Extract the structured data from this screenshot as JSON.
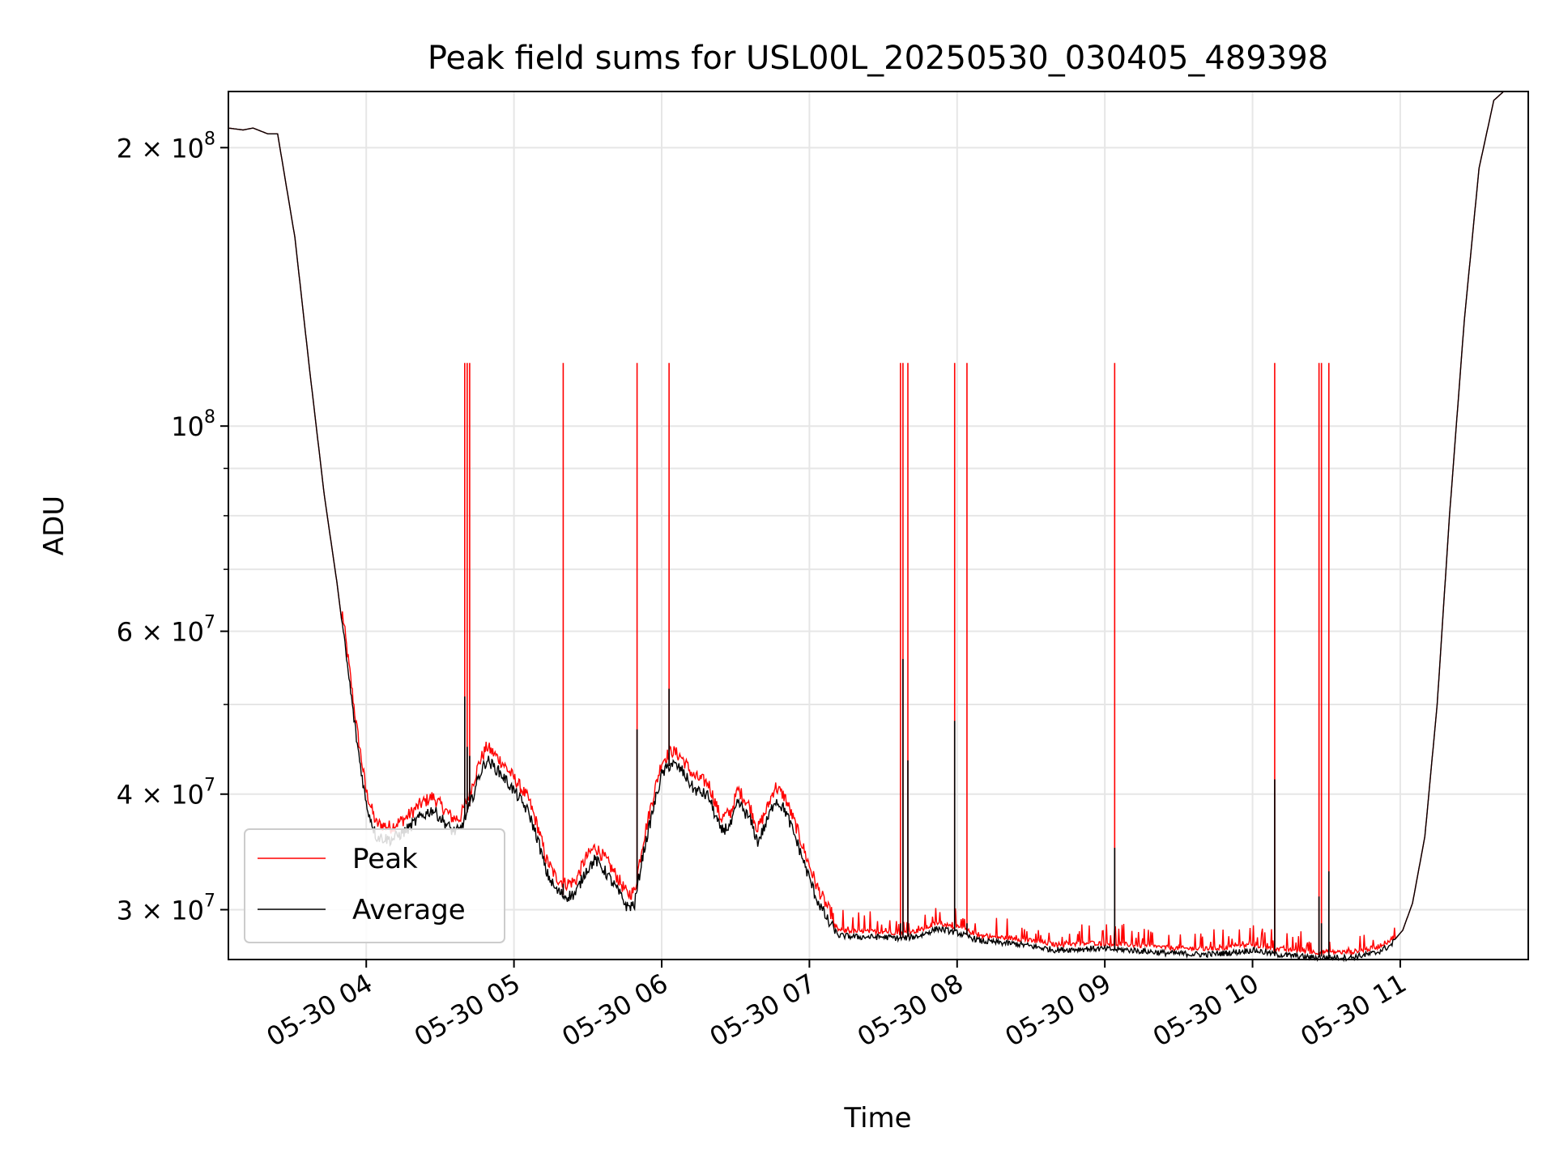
{
  "chart_data": {
    "type": "line",
    "title": "Peak field sums for USL00L_20250530_030405_489398",
    "xlabel": "Time",
    "ylabel": "ADU",
    "yscale": "log",
    "grid": true,
    "legend_position": "lower-left",
    "xlim": [
      "2025-05-30 03:04",
      "2025-05-30 11:52"
    ],
    "ylim": [
      26500000,
      230000000
    ],
    "x_ticks": [
      {
        "value": "2025-05-30 04:00",
        "label": "05-30 04"
      },
      {
        "value": "2025-05-30 05:00",
        "label": "05-30 05"
      },
      {
        "value": "2025-05-30 06:00",
        "label": "05-30 06"
      },
      {
        "value": "2025-05-30 07:00",
        "label": "05-30 07"
      },
      {
        "value": "2025-05-30 08:00",
        "label": "05-30 08"
      },
      {
        "value": "2025-05-30 09:00",
        "label": "05-30 09"
      },
      {
        "value": "2025-05-30 10:00",
        "label": "05-30 10"
      },
      {
        "value": "2025-05-30 11:00",
        "label": "05-30 11"
      }
    ],
    "y_ticks": [
      {
        "value": 30000000,
        "mantissa": "3",
        "exponent": "7"
      },
      {
        "value": 40000000,
        "mantissa": "4",
        "exponent": "7"
      },
      {
        "value": 60000000,
        "mantissa": "6",
        "exponent": "7"
      },
      {
        "value": 100000000,
        "mantissa": "",
        "exponent": "8"
      },
      {
        "value": 200000000,
        "mantissa": "2",
        "exponent": "8"
      }
    ],
    "y_minor_ticks": [
      50000000,
      70000000,
      80000000,
      90000000
    ],
    "series": [
      {
        "name": "Peak",
        "color": "#ff0000"
      },
      {
        "name": "Average",
        "color": "#000000"
      }
    ],
    "average_curve": [
      [
        "2025-05-30 03:04",
        210000000
      ],
      [
        "2025-05-30 03:10",
        209000000
      ],
      [
        "2025-05-30 03:14",
        210000000
      ],
      [
        "2025-05-30 03:20",
        207000000
      ],
      [
        "2025-05-30 03:24",
        207000000
      ],
      [
        "2025-05-30 03:31",
        160000000
      ],
      [
        "2025-05-30 03:37",
        115000000
      ],
      [
        "2025-05-30 03:43",
        84000000
      ],
      [
        "2025-05-30 03:48",
        68000000
      ],
      [
        "2025-05-30 03:52",
        56000000
      ],
      [
        "2025-05-30 03:56",
        46000000
      ],
      [
        "2025-05-30 04:00",
        39000000
      ],
      [
        "2025-05-30 04:04",
        36000000
      ],
      [
        "2025-05-30 04:10",
        35700000
      ],
      [
        "2025-05-30 04:16",
        36500000
      ],
      [
        "2025-05-30 04:22",
        37800000
      ],
      [
        "2025-05-30 04:27",
        38500000
      ],
      [
        "2025-05-30 04:31",
        37500000
      ],
      [
        "2025-05-30 04:35",
        36500000
      ],
      [
        "2025-05-30 04:38",
        36500000
      ],
      [
        "2025-05-30 04:42",
        38800000
      ],
      [
        "2025-05-30 04:46",
        42000000
      ],
      [
        "2025-05-30 04:49",
        43600000
      ],
      [
        "2025-05-30 04:55",
        42000000
      ],
      [
        "2025-05-30 05:01",
        40000000
      ],
      [
        "2025-05-30 05:06",
        38200000
      ],
      [
        "2025-05-30 05:10",
        35500000
      ],
      [
        "2025-05-30 05:13",
        33000000
      ],
      [
        "2025-05-30 05:17",
        31500000
      ],
      [
        "2025-05-30 05:21",
        31000000
      ],
      [
        "2025-05-30 05:25",
        31200000
      ],
      [
        "2025-05-30 05:29",
        33000000
      ],
      [
        "2025-05-30 05:33",
        34000000
      ],
      [
        "2025-05-30 05:37",
        33000000
      ],
      [
        "2025-05-30 05:42",
        31500000
      ],
      [
        "2025-05-30 05:46",
        30200000
      ],
      [
        "2025-05-30 05:49",
        30400000
      ],
      [
        "2025-05-30 05:52",
        34000000
      ],
      [
        "2025-05-30 05:56",
        38000000
      ],
      [
        "2025-05-30 06:00",
        42000000
      ],
      [
        "2025-05-30 06:04",
        43200000
      ],
      [
        "2025-05-30 06:08",
        42500000
      ],
      [
        "2025-05-30 06:13",
        40500000
      ],
      [
        "2025-05-30 06:19",
        39800000
      ],
      [
        "2025-05-30 06:24",
        36500000
      ],
      [
        "2025-05-30 06:28",
        37000000
      ],
      [
        "2025-05-30 06:31",
        39200000
      ],
      [
        "2025-05-30 06:36",
        37500000
      ],
      [
        "2025-05-30 06:39",
        35500000
      ],
      [
        "2025-05-30 06:43",
        37500000
      ],
      [
        "2025-05-30 06:46",
        39500000
      ],
      [
        "2025-05-30 06:50",
        38500000
      ],
      [
        "2025-05-30 06:55",
        35500000
      ],
      [
        "2025-05-30 06:59",
        33000000
      ],
      [
        "2025-05-30 07:03",
        30800000
      ],
      [
        "2025-05-30 07:08",
        29000000
      ],
      [
        "2025-05-30 07:12",
        28200000
      ],
      [
        "2025-05-30 07:20",
        28100000
      ],
      [
        "2025-05-30 07:30",
        28100000
      ],
      [
        "2025-05-30 07:38",
        28000000
      ],
      [
        "2025-05-30 07:45",
        28200000
      ],
      [
        "2025-05-30 07:52",
        28700000
      ],
      [
        "2025-05-30 08:00",
        28400000
      ],
      [
        "2025-05-30 08:10",
        27800000
      ],
      [
        "2025-05-30 08:25",
        27600000
      ],
      [
        "2025-05-30 08:40",
        27200000
      ],
      [
        "2025-05-30 08:55",
        27300000
      ],
      [
        "2025-05-30 09:10",
        27200000
      ],
      [
        "2025-05-30 09:25",
        27000000
      ],
      [
        "2025-05-30 09:40",
        26900000
      ],
      [
        "2025-05-30 09:50",
        27000000
      ],
      [
        "2025-05-30 10:00",
        27200000
      ],
      [
        "2025-05-30 10:10",
        26900000
      ],
      [
        "2025-05-30 10:25",
        26700000
      ],
      [
        "2025-05-30 10:40",
        26700000
      ],
      [
        "2025-05-30 10:50",
        27000000
      ],
      [
        "2025-05-30 10:56",
        27500000
      ],
      [
        "2025-05-30 11:01",
        28500000
      ],
      [
        "2025-05-30 11:05",
        30500000
      ],
      [
        "2025-05-30 11:10",
        36000000
      ],
      [
        "2025-05-30 11:15",
        50000000
      ],
      [
        "2025-05-30 11:20",
        80000000
      ],
      [
        "2025-05-30 11:26",
        130000000
      ],
      [
        "2025-05-30 11:32",
        190000000
      ],
      [
        "2025-05-30 11:38",
        225000000
      ],
      [
        "2025-05-30 11:42",
        230000000
      ]
    ],
    "peak_spikes": [
      {
        "time": "2025-05-30 04:40",
        "peak": 117000000,
        "average": 51000000
      },
      {
        "time": "2025-05-30 04:41",
        "peak": 117000000,
        "average": 45000000
      },
      {
        "time": "2025-05-30 04:42",
        "peak": 117000000,
        "average": 44000000
      },
      {
        "time": "2025-05-30 05:20",
        "peak": 117000000,
        "average": 32000000
      },
      {
        "time": "2025-05-30 05:50",
        "peak": 117000000,
        "average": 47000000
      },
      {
        "time": "2025-05-30 06:03",
        "peak": 117000000,
        "average": 52000000
      },
      {
        "time": "2025-05-30 07:37",
        "peak": 117000000,
        "average": 29000000
      },
      {
        "time": "2025-05-30 07:38",
        "peak": 117000000,
        "average": 56000000
      },
      {
        "time": "2025-05-30 07:40",
        "peak": 117000000,
        "average": 43500000
      },
      {
        "time": "2025-05-30 07:59",
        "peak": 117000000,
        "average": 48000000
      },
      {
        "time": "2025-05-30 08:04",
        "peak": 117000000,
        "average": 29000000
      },
      {
        "time": "2025-05-30 09:04",
        "peak": 117000000,
        "average": 35000000
      },
      {
        "time": "2025-05-30 10:09",
        "peak": 117000000,
        "average": 41500000
      },
      {
        "time": "2025-05-30 10:27",
        "peak": 117000000,
        "average": 31000000
      },
      {
        "time": "2025-05-30 10:28",
        "peak": 117000000,
        "average": 29000000
      },
      {
        "time": "2025-05-30 10:31",
        "peak": 117000000,
        "average": 33000000
      }
    ]
  }
}
